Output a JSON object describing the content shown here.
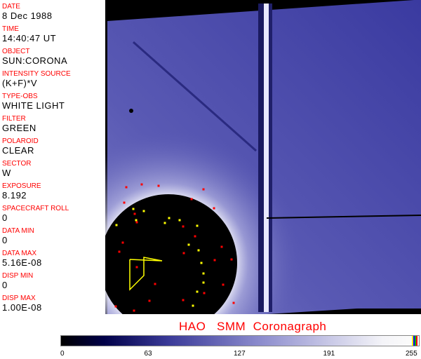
{
  "fields": [
    {
      "label": "DATE",
      "value": "8 Dec 1988"
    },
    {
      "label": "TIME",
      "value": "14:40:47 UT"
    },
    {
      "label": "OBJECT",
      "value": "SUN:CORONA"
    },
    {
      "label": "INTENSITY SOURCE",
      "value": "(K+F)*V"
    },
    {
      "label": "TYPE-OBS",
      "value": "WHITE LIGHT"
    },
    {
      "label": "FILTER",
      "value": "GREEN"
    },
    {
      "label": "POLAROID",
      "value": "CLEAR"
    },
    {
      "label": "SECTOR",
      "value": "W"
    },
    {
      "label": "EXPOSURE",
      "value": "8.192"
    },
    {
      "label": "SPACECRAFT ROLL",
      "value": "0"
    },
    {
      "label": "DATA MIN",
      "value": "0"
    },
    {
      "label": "DATA MAX",
      "value": "5.16E-08"
    },
    {
      "label": "DISP MIN",
      "value": "0"
    },
    {
      "label": "DISP MAX",
      "value": "1.00E-08"
    }
  ],
  "title": "HAO   SMM  Coronagraph",
  "colorbar": {
    "ticks": [
      "0",
      "63",
      "127",
      "191",
      "255"
    ],
    "colors": {
      "low": "#000000",
      "mid": "#3a3a98",
      "high": "#fafafa",
      "swatches": [
        "#ffff00",
        "#0000ff",
        "#00c000",
        "#ff0000"
      ]
    }
  },
  "colors": {
    "label": "#ff0000",
    "value": "#000000",
    "marker_red": "#ff0000",
    "marker_yellow": "#ffff00"
  }
}
